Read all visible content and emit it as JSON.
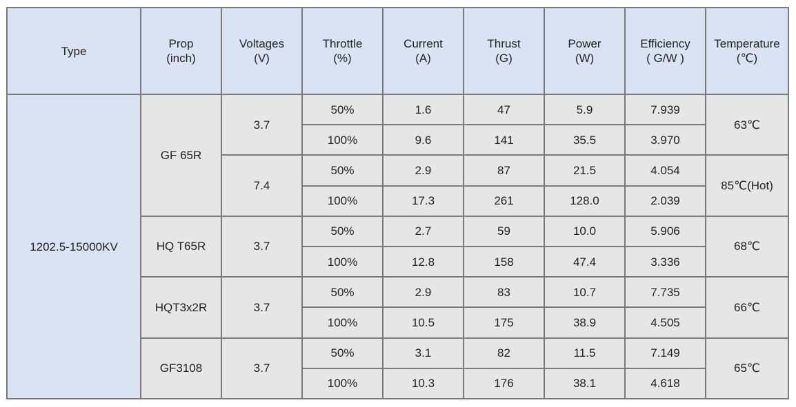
{
  "headers": [
    {
      "line1": "Type",
      "line2": ""
    },
    {
      "line1": "Prop",
      "line2": "(inch)"
    },
    {
      "line1": "Voltages",
      "line2": "(V)"
    },
    {
      "line1": "Throttle",
      "line2": "(%)"
    },
    {
      "line1": "Current",
      "line2": "(A)"
    },
    {
      "line1": "Thrust",
      "line2": "(G)"
    },
    {
      "line1": "Power",
      "line2": "(W)"
    },
    {
      "line1": "Efficiency",
      "line2": "( G/W )"
    },
    {
      "line1": "Temperature",
      "line2": "(℃)"
    }
  ],
  "type": "1202.5-15000KV",
  "rows": [
    {
      "prop": "GF 65R",
      "voltage": "3.7",
      "temp": "63℃",
      "throttle": "50%",
      "current": "1.6",
      "thrust": "47",
      "power": "5.9",
      "efficiency": "7.939"
    },
    {
      "throttle": "100%",
      "current": "9.6",
      "thrust": "141",
      "power": "35.5",
      "efficiency": "3.970"
    },
    {
      "voltage": "7.4",
      "temp": "85℃(Hot)",
      "throttle": "50%",
      "current": "2.9",
      "thrust": "87",
      "power": "21.5",
      "efficiency": "4.054"
    },
    {
      "throttle": "100%",
      "current": "17.3",
      "thrust": "261",
      "power": "128.0",
      "efficiency": "2.039"
    },
    {
      "prop": "HQ T65R",
      "voltage": "3.7",
      "temp": "68℃",
      "throttle": "50%",
      "current": "2.7",
      "thrust": "59",
      "power": "10.0",
      "efficiency": "5.906"
    },
    {
      "throttle": "100%",
      "current": "12.8",
      "thrust": "158",
      "power": "47.4",
      "efficiency": "3.336"
    },
    {
      "prop": "HQT3x2R",
      "voltage": "3.7",
      "temp": "66℃",
      "throttle": "50%",
      "current": "2.9",
      "thrust": "83",
      "power": "10.7",
      "efficiency": "7.735"
    },
    {
      "throttle": "100%",
      "current": "10.5",
      "thrust": "175",
      "power": "38.9",
      "efficiency": "4.505"
    },
    {
      "prop": "GF3108",
      "voltage": "3.7",
      "temp": "65℃",
      "throttle": "50%",
      "current": "3.1",
      "thrust": "82",
      "power": "11.5",
      "efficiency": "7.149"
    },
    {
      "throttle": "100%",
      "current": "10.3",
      "thrust": "176",
      "power": "38.1",
      "efficiency": "4.618"
    }
  ]
}
